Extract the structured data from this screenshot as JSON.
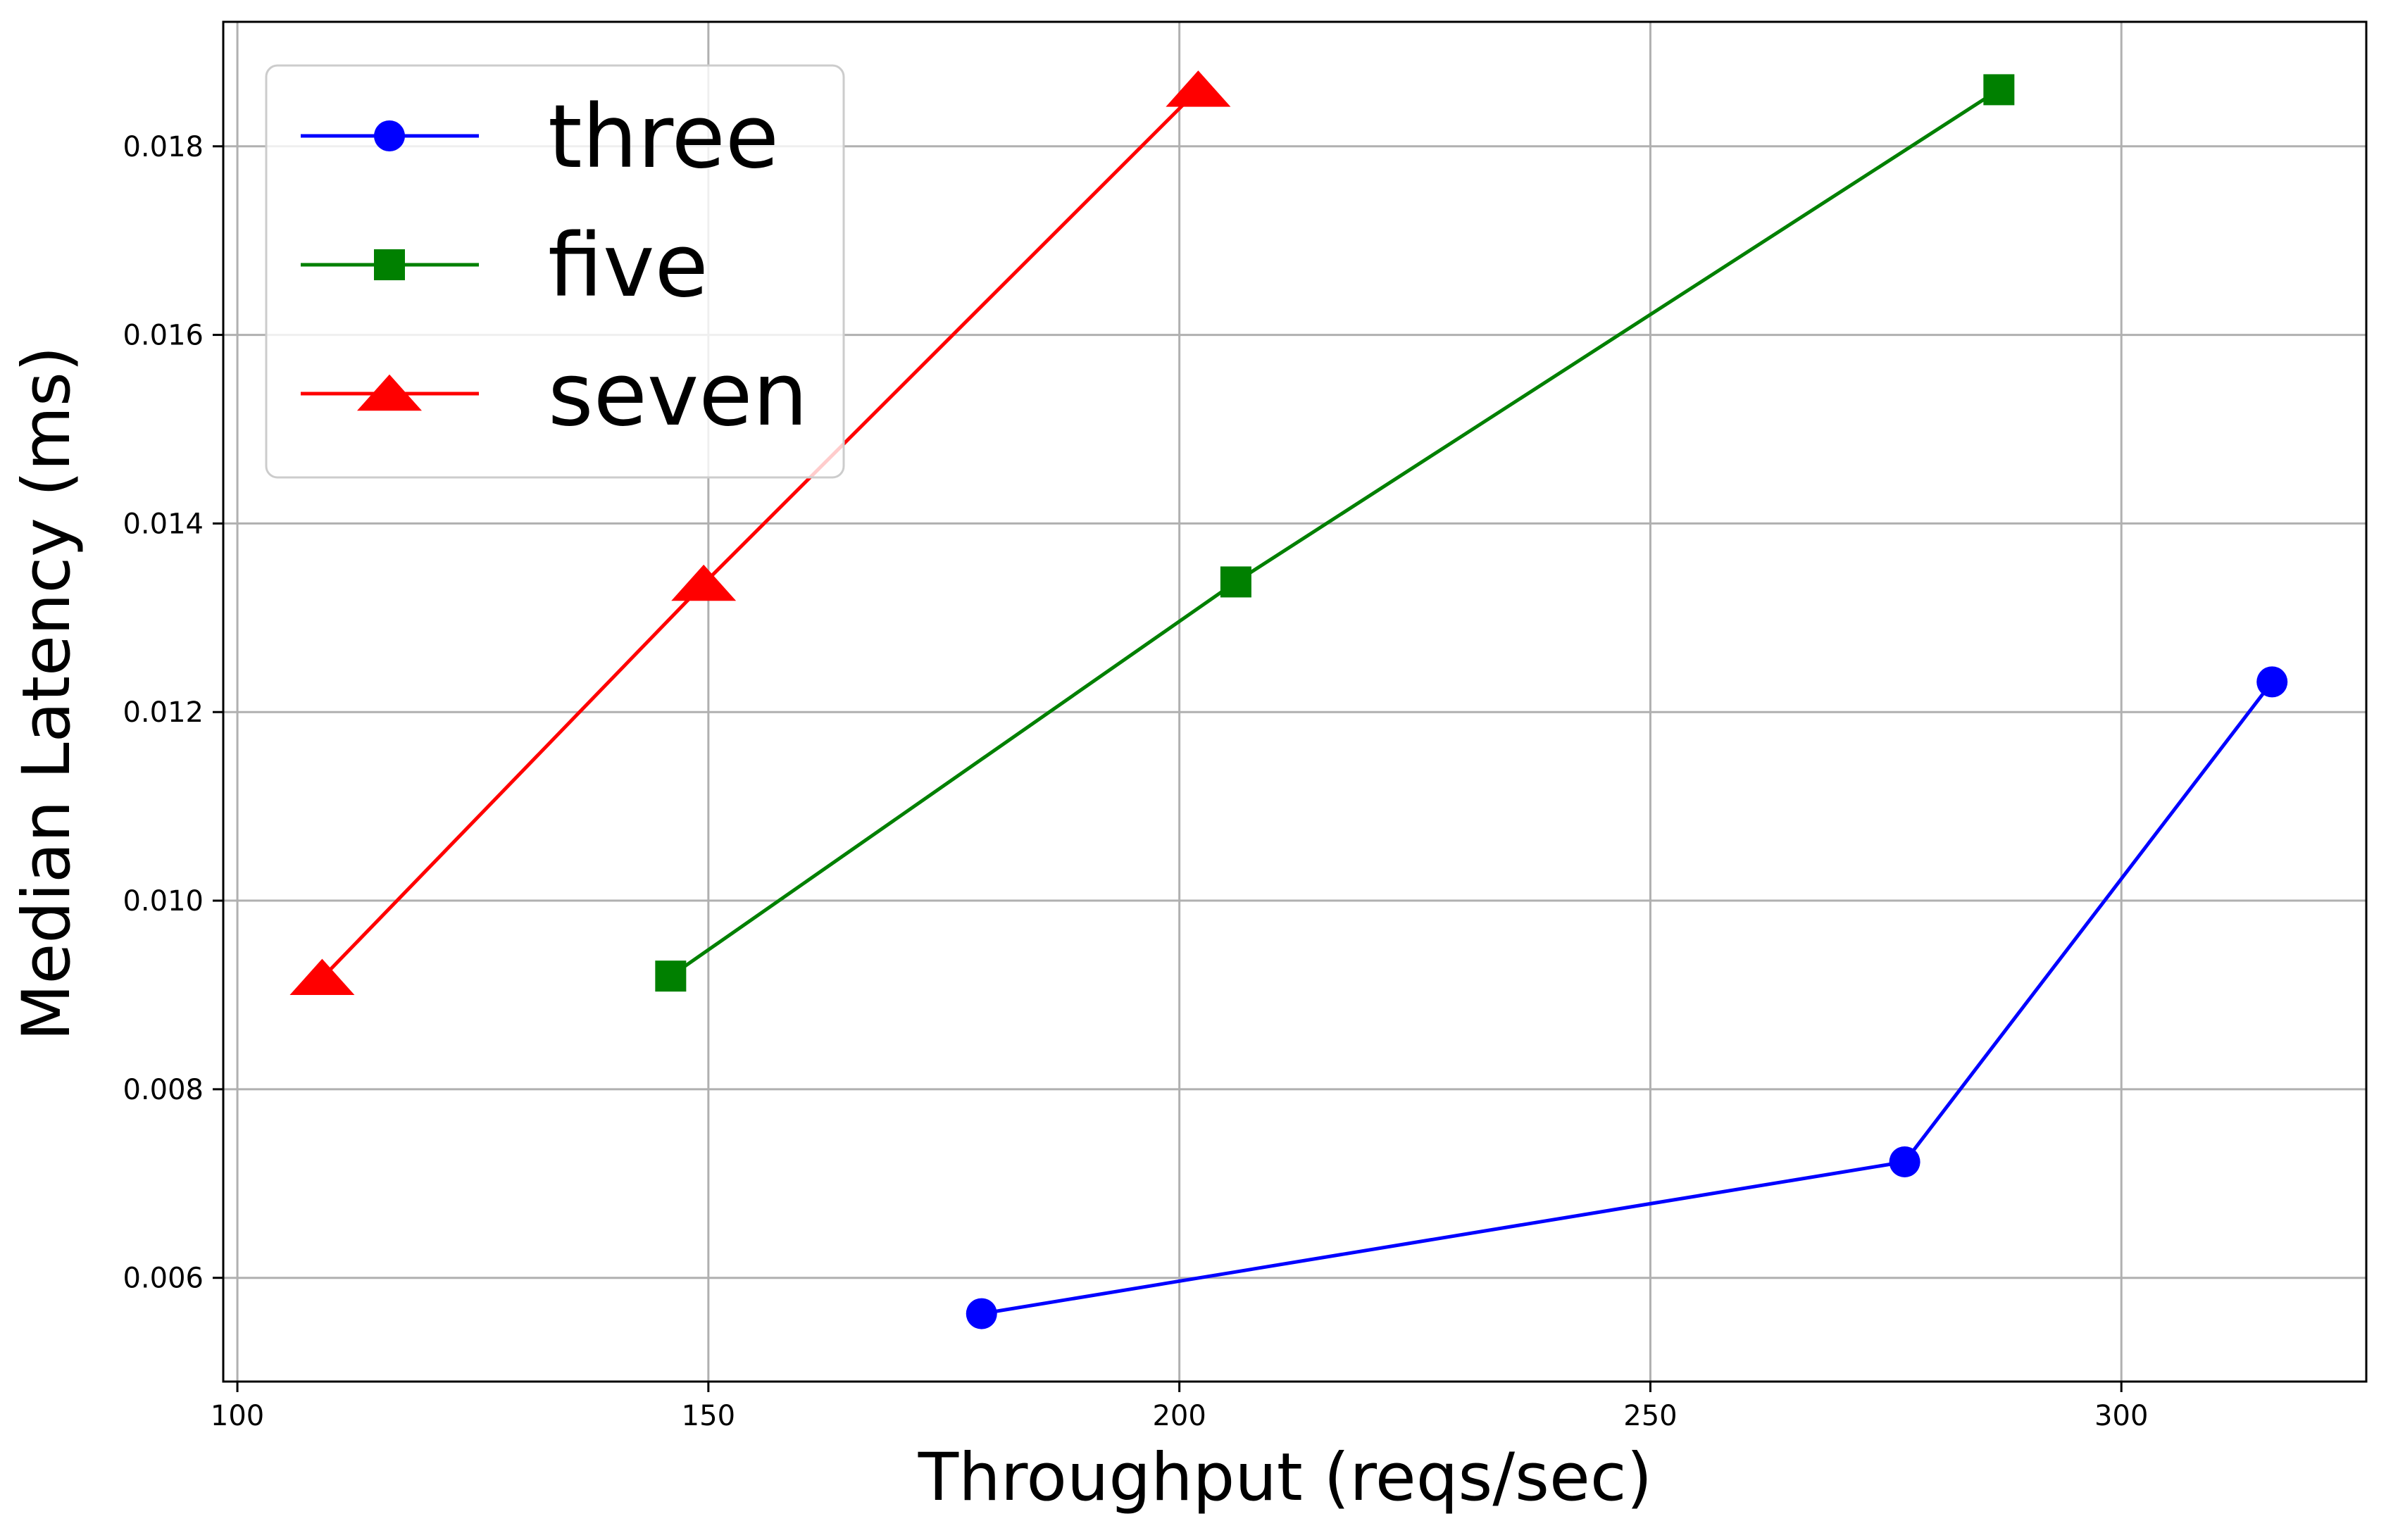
{
  "chart_data": {
    "type": "line",
    "title": "",
    "xlabel": "Throughput (reqs/sec)",
    "ylabel": "Median Latency (ms)",
    "xlim": [
      98.5,
      326
    ],
    "ylim": [
      0.0049,
      0.01932
    ],
    "xticks": [
      100,
      150,
      200,
      250,
      300
    ],
    "xtick_labels": [
      "100",
      "150",
      "200",
      "250",
      "300"
    ],
    "yticks": [
      0.006,
      0.008,
      0.01,
      0.012,
      0.014,
      0.016,
      0.018
    ],
    "ytick_labels": [
      "0.006",
      "0.008",
      "0.010",
      "0.012",
      "0.014",
      "0.016",
      "0.018"
    ],
    "grid": true,
    "legend_position": "upper-left",
    "series": [
      {
        "name": "three",
        "color": "#0000ff",
        "marker": "circle",
        "x": [
          179,
          277,
          316
        ],
        "y": [
          0.00562,
          0.00723,
          0.01232
        ]
      },
      {
        "name": "five",
        "color": "#008000",
        "marker": "square",
        "x": [
          146,
          206,
          287
        ],
        "y": [
          0.0092,
          0.01338,
          0.0186
        ]
      },
      {
        "name": "seven",
        "color": "#ff0000",
        "marker": "triangle",
        "x": [
          109,
          149.5,
          202
        ],
        "y": [
          0.00918,
          0.01336,
          0.0186
        ]
      }
    ]
  }
}
